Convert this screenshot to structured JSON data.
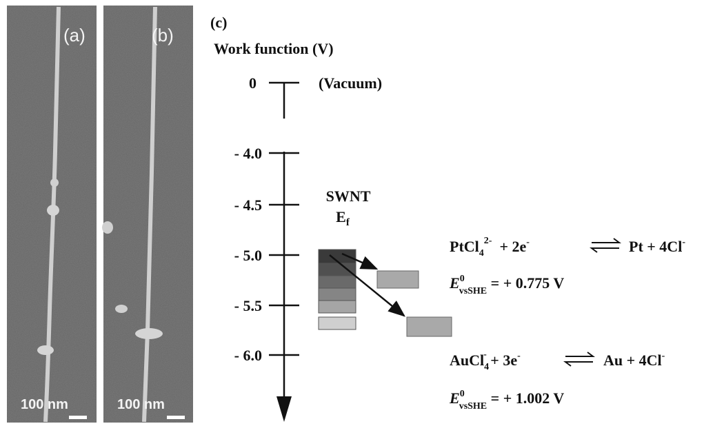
{
  "panels": {
    "a": {
      "label": "(a)",
      "scale": "100 nm"
    },
    "b": {
      "label": "(b)",
      "scale": "100 nm"
    },
    "c": {
      "label": "(c)",
      "axis_title": "Work function (V)",
      "top_tick": "0",
      "vacuum": "(Vacuum)",
      "ticks": [
        "- 4.0",
        "- 4.5",
        "- 5.0",
        "- 5.5",
        "- 6.0"
      ],
      "swnt": "SWNT",
      "ef": "E",
      "ef_sub": "f",
      "equations": [
        {
          "reactant": "PtCl",
          "reactant_sub": "4",
          "reactant_sup": "2-",
          "middle": "  + 2e",
          "middle_sup": "-",
          "product": "Pt + 4Cl",
          "product_sup": "-",
          "e": "E",
          "e_sup": "0",
          "e_sub": "vsSHE",
          "potential": " = + 0.775 V"
        },
        {
          "reactant": "AuCl",
          "reactant_sub": "4",
          "reactant_sup": "-",
          "middle": " + 3e",
          "middle_sup": "-",
          "product": "Au + 4Cl",
          "product_sup": "-",
          "e": "E",
          "e_sup": "0",
          "e_sub": "vsSHE",
          "potential": " = + 1.002 V"
        }
      ]
    }
  }
}
